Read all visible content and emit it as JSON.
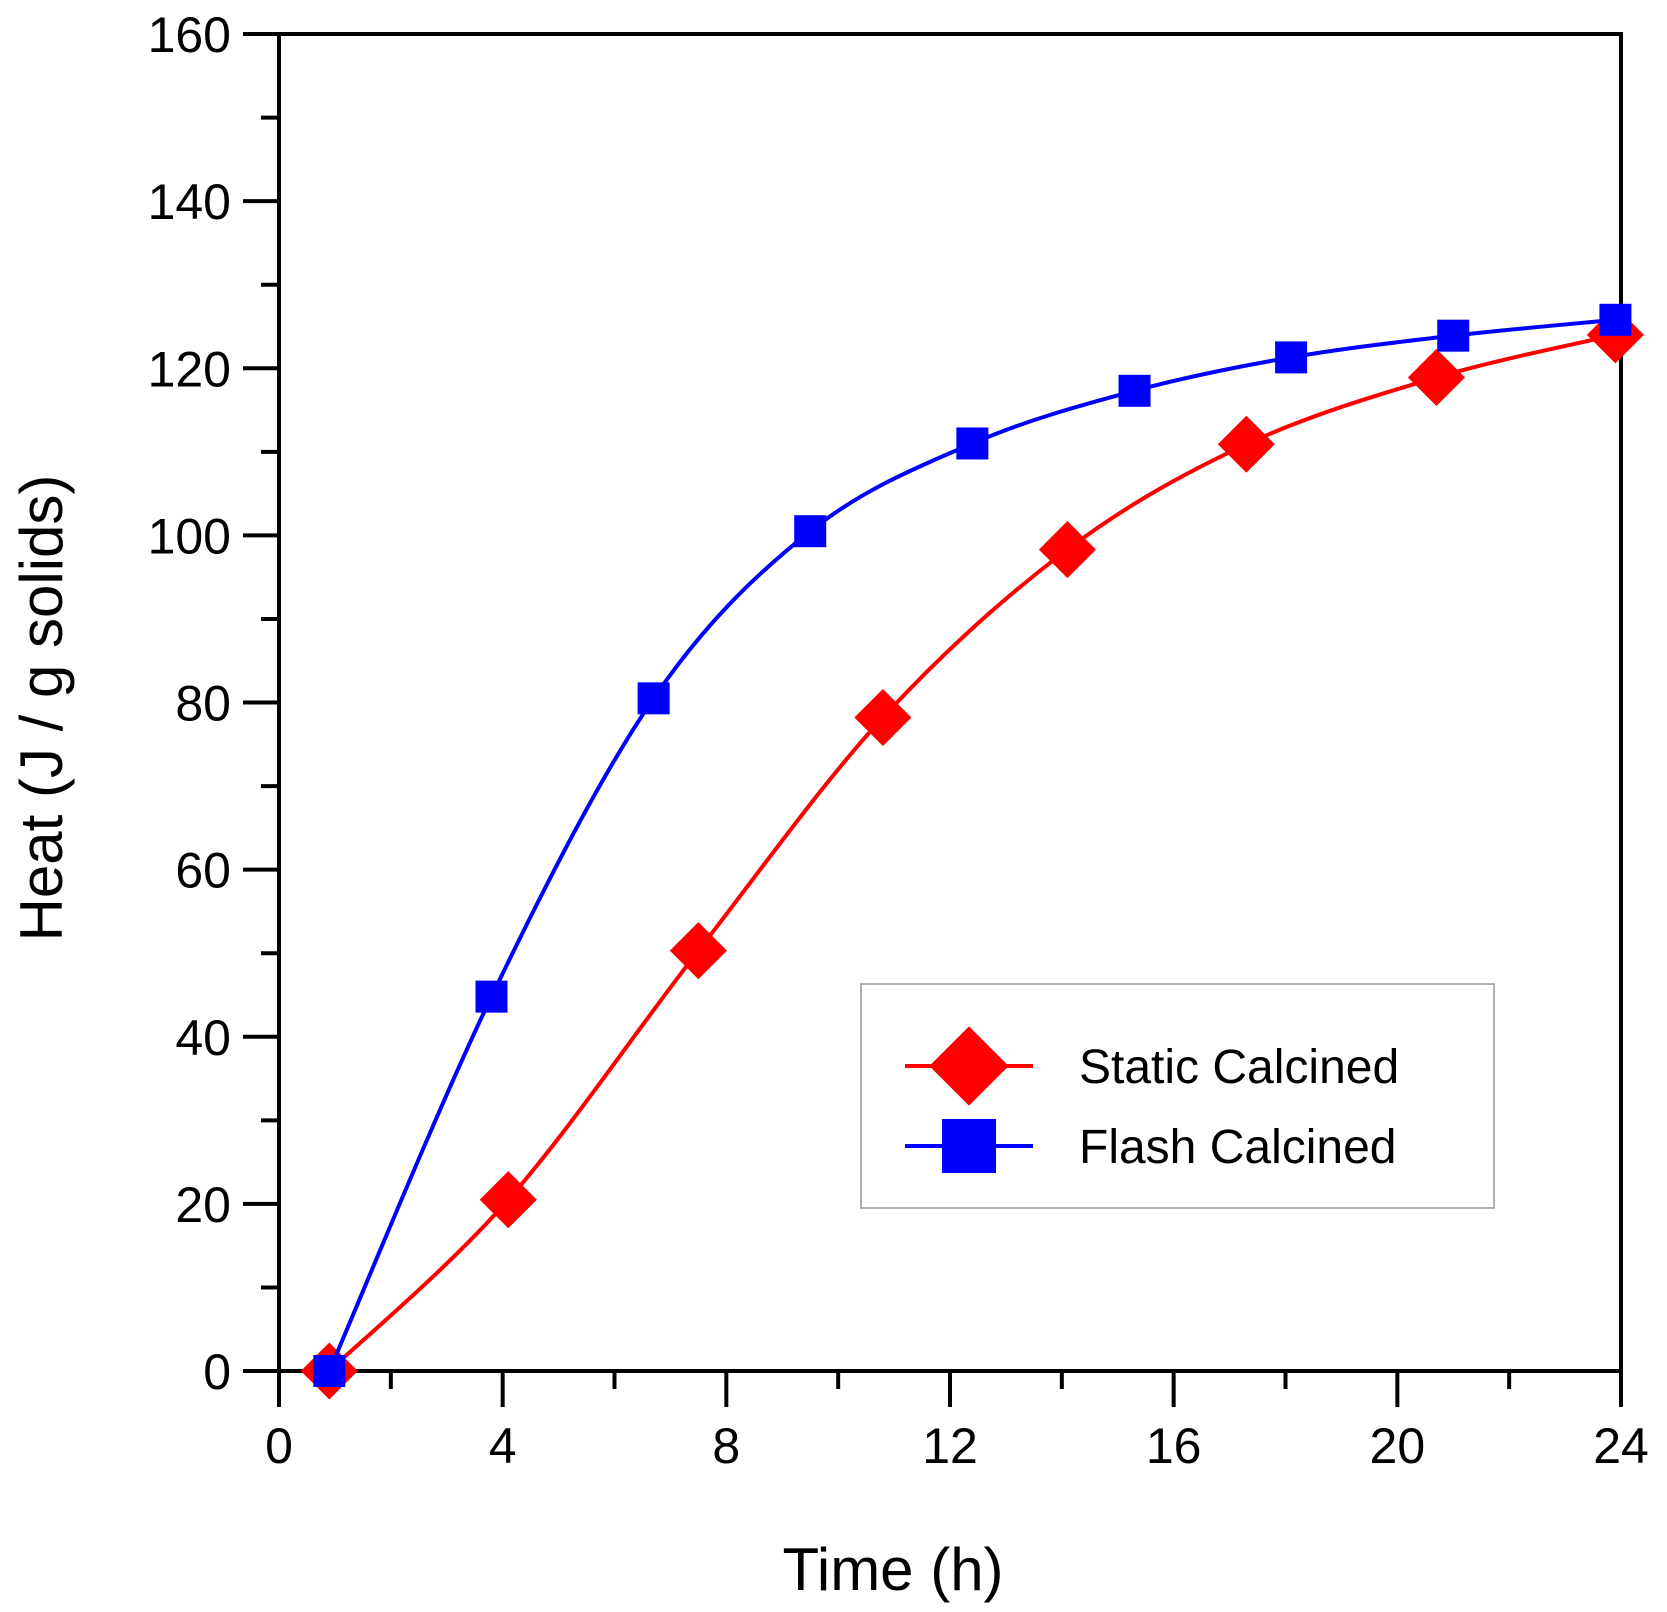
{
  "chart_data": {
    "type": "line",
    "xlabel": "Time (h)",
    "ylabel": "Heat (J / g solids)",
    "xlim": [
      0,
      24
    ],
    "ylim": [
      0,
      160
    ],
    "x_ticks": [
      0,
      4,
      8,
      12,
      16,
      20,
      24
    ],
    "y_ticks": [
      0,
      20,
      40,
      60,
      80,
      100,
      120,
      140,
      160
    ],
    "grid": false,
    "legend_position": "lower-right",
    "series": [
      {
        "name": "Static Calcined",
        "color": "#ff0000",
        "marker": "diamond",
        "x": [
          0.9,
          4.1,
          7.5,
          10.8,
          14.1,
          17.3,
          20.7,
          23.9
        ],
        "y": [
          0,
          20.5,
          50.3,
          78.2,
          98.3,
          110.9,
          118.9,
          124.0
        ]
      },
      {
        "name": "Flash Calcined",
        "color": "#0000ff",
        "marker": "square",
        "x": [
          0.9,
          3.8,
          6.7,
          9.5,
          12.4,
          15.3,
          18.1,
          21.0,
          23.9
        ],
        "y": [
          0,
          44.8,
          80.5,
          100.5,
          111.0,
          117.3,
          121.3,
          123.9,
          125.8
        ]
      }
    ]
  }
}
